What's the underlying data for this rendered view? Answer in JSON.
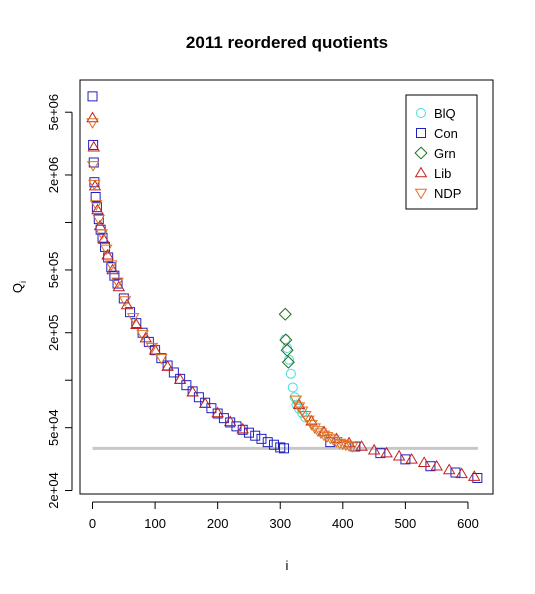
{
  "chart_data": {
    "type": "scatter",
    "title": "2011 reordered quotients",
    "xlabel": "i",
    "ylabel": "Q",
    "ylabel_sub": "i",
    "xlim": [
      -20,
      640
    ],
    "ylim": [
      19000,
      8000000
    ],
    "y_scale": "log",
    "x_ticks": [
      0,
      100,
      200,
      300,
      400,
      500,
      600
    ],
    "y_ticks": [
      {
        "value": 20000,
        "label": "2e+04"
      },
      {
        "value": 50000,
        "label": "5e+04"
      },
      {
        "value": 200000,
        "label": "2e+05"
      },
      {
        "value": 500000,
        "label": "5e+05"
      },
      {
        "value": 2000000,
        "label": "2e+06"
      },
      {
        "value": 5000000,
        "label": "5e+06"
      }
    ],
    "y_minor_ticks": [
      100000,
      1000000
    ],
    "grid": false,
    "legend_position": "top-right",
    "cutoff_line": {
      "value": 37000,
      "x": [
        0,
        616
      ],
      "color": "#c8c8c8"
    },
    "series": [
      {
        "name": "BlQ",
        "marker": "circle",
        "color": "#40e0e0",
        "points": [
          [
            308,
            182000
          ],
          [
            311,
            160000
          ],
          [
            314,
            135000
          ],
          [
            317,
            110000
          ],
          [
            320,
            90000
          ],
          [
            323,
            78000
          ],
          [
            326,
            70000
          ],
          [
            330,
            66000
          ],
          [
            335,
            62000
          ],
          [
            340,
            58000
          ]
        ]
      },
      {
        "name": "Con",
        "marker": "square",
        "color": "#2020c0",
        "points": [
          [
            0,
            6300000
          ],
          [
            1,
            3100000
          ],
          [
            2,
            2400000
          ],
          [
            3,
            1800000
          ],
          [
            5,
            1450000
          ],
          [
            7,
            1250000
          ],
          [
            10,
            1050000
          ],
          [
            13,
            900000
          ],
          [
            16,
            800000
          ],
          [
            20,
            700000
          ],
          [
            25,
            600000
          ],
          [
            30,
            520000
          ],
          [
            35,
            460000
          ],
          [
            40,
            410000
          ],
          [
            50,
            330000
          ],
          [
            60,
            270000
          ],
          [
            70,
            230000
          ],
          [
            80,
            200000
          ],
          [
            90,
            175000
          ],
          [
            100,
            155000
          ],
          [
            110,
            138000
          ],
          [
            120,
            124000
          ],
          [
            130,
            112000
          ],
          [
            140,
            102000
          ],
          [
            150,
            93000
          ],
          [
            160,
            85000
          ],
          [
            170,
            78000
          ],
          [
            180,
            72000
          ],
          [
            190,
            66500
          ],
          [
            200,
            61500
          ],
          [
            210,
            57500
          ],
          [
            220,
            54000
          ],
          [
            230,
            51000
          ],
          [
            240,
            48500
          ],
          [
            250,
            46500
          ],
          [
            260,
            44500
          ],
          [
            270,
            42500
          ],
          [
            280,
            40500
          ],
          [
            290,
            39000
          ],
          [
            300,
            37500
          ],
          [
            306,
            37000
          ],
          [
            380,
            40500
          ],
          [
            420,
            38000
          ],
          [
            460,
            34500
          ],
          [
            500,
            31500
          ],
          [
            540,
            28500
          ],
          [
            580,
            26000
          ],
          [
            615,
            24000
          ]
        ]
      },
      {
        "name": "Grn",
        "marker": "diamond",
        "color": "#207020",
        "points": [
          [
            308,
            262000
          ],
          [
            309,
            180000
          ],
          [
            311,
            155000
          ],
          [
            313,
            130000
          ]
        ]
      },
      {
        "name": "Lib",
        "marker": "triangle-up",
        "color": "#c02020",
        "points": [
          [
            0,
            4600000
          ],
          [
            2,
            3000000
          ],
          [
            4,
            1700000
          ],
          [
            8,
            1200000
          ],
          [
            12,
            950000
          ],
          [
            18,
            780000
          ],
          [
            24,
            620000
          ],
          [
            32,
            500000
          ],
          [
            42,
            390000
          ],
          [
            55,
            300000
          ],
          [
            70,
            225000
          ],
          [
            85,
            185000
          ],
          [
            100,
            155000
          ],
          [
            120,
            122000
          ],
          [
            140,
            101000
          ],
          [
            160,
            84000
          ],
          [
            180,
            71000
          ],
          [
            200,
            62000
          ],
          [
            220,
            54500
          ],
          [
            240,
            49000
          ],
          [
            330,
            70000
          ],
          [
            350,
            55000
          ],
          [
            370,
            47000
          ],
          [
            390,
            42500
          ],
          [
            410,
            40000
          ],
          [
            430,
            38000
          ],
          [
            450,
            36000
          ],
          [
            470,
            34500
          ],
          [
            490,
            33000
          ],
          [
            510,
            31500
          ],
          [
            530,
            30000
          ],
          [
            550,
            28500
          ],
          [
            570,
            27000
          ],
          [
            590,
            25500
          ],
          [
            610,
            24500
          ]
        ]
      },
      {
        "name": "NDP",
        "marker": "triangle-down",
        "color": "#e07020",
        "points": [
          [
            0,
            4300000
          ],
          [
            1,
            2300000
          ],
          [
            3,
            1750000
          ],
          [
            6,
            1300000
          ],
          [
            10,
            1050000
          ],
          [
            15,
            850000
          ],
          [
            22,
            680000
          ],
          [
            30,
            540000
          ],
          [
            40,
            420000
          ],
          [
            52,
            320000
          ],
          [
            65,
            250000
          ],
          [
            80,
            195000
          ],
          [
            95,
            162000
          ],
          [
            110,
            138000
          ],
          [
            325,
            75000
          ],
          [
            330,
            68000
          ],
          [
            335,
            64000
          ],
          [
            340,
            60000
          ],
          [
            345,
            56000
          ],
          [
            350,
            52500
          ],
          [
            355,
            50000
          ],
          [
            360,
            48000
          ],
          [
            365,
            46500
          ],
          [
            370,
            45000
          ],
          [
            375,
            44000
          ],
          [
            380,
            43000
          ],
          [
            385,
            42000
          ],
          [
            390,
            41000
          ],
          [
            395,
            40000
          ],
          [
            400,
            39500
          ],
          [
            405,
            39000
          ],
          [
            410,
            38500
          ],
          [
            415,
            38000
          ]
        ]
      }
    ]
  }
}
